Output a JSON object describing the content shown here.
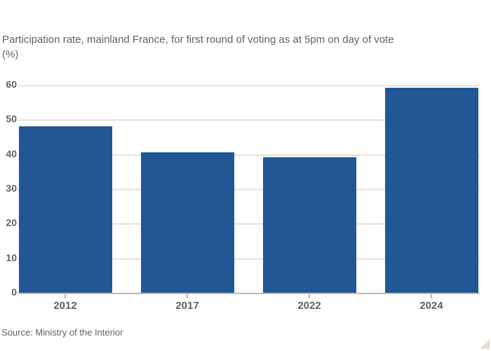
{
  "chart_data": {
    "type": "bar",
    "title": "Participation rate, mainland France, for first round of voting as at 5pm on day of vote",
    "unit_label": "(%)",
    "categories": [
      "2012",
      "2017",
      "2022",
      "2024"
    ],
    "values": [
      48.31,
      40.75,
      39.42,
      59.39
    ],
    "ylim": [
      0,
      60
    ],
    "yticks": [
      0,
      10,
      20,
      30,
      40,
      50,
      60
    ],
    "grid": "horizontal",
    "legend": "none",
    "source": "Source: Ministry of the Interior"
  },
  "colors": {
    "background": "#ffffff",
    "bar": "#215794",
    "gridline": "#ecdfd3",
    "axis_line": "#c2b8ae",
    "tick_mark": "#c2b8ae",
    "text": "#66605c",
    "corner_triangle": "#e8dbcf"
  }
}
